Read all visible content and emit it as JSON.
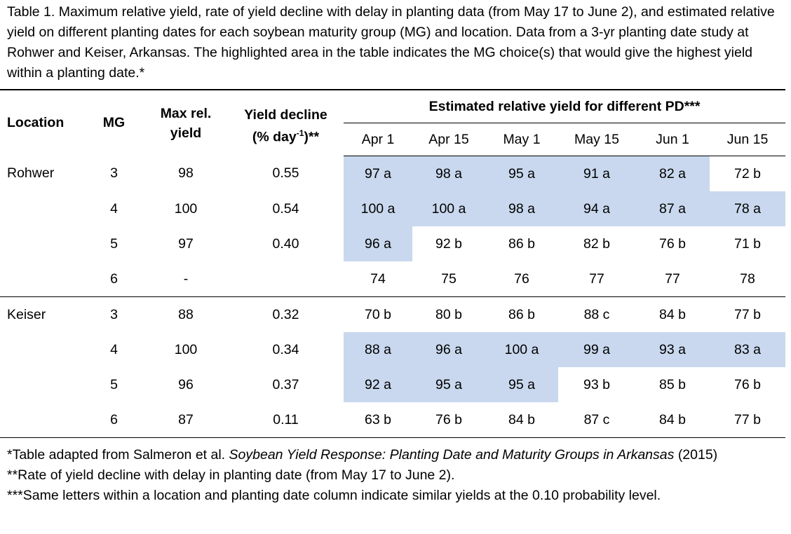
{
  "caption": "Table 1. Maximum relative yield, rate of yield decline with delay in planting data (from May 17 to June 2), and estimated relative yield on different planting dates for each soybean maturity group (MG) and location. Data from a 3-yr planting date study at Rohwer and Keiser, Arkansas. The highlighted area in the table indicates the MG choice(s) that would give the highest yield within a planting date.*",
  "table": {
    "headers": {
      "location": "Location",
      "mg": "MG",
      "max_yield": "Max rel. yield",
      "decline": "Yield decline",
      "decline_unit": "(% day",
      "decline_exponent": "-1",
      "decline_suffix": ")**",
      "group": "Estimated relative yield for different PD***",
      "dates": [
        "Apr 1",
        "Apr 15",
        "May 1",
        "May 15",
        "Jun 1",
        "Jun 15"
      ]
    },
    "groups": [
      {
        "location": "Rohwer",
        "rows": [
          {
            "mg": "3",
            "max_yield": "98",
            "decline": "0.55",
            "yields": [
              "97 a",
              "98 a",
              "95 a",
              "91 a",
              "82 a",
              "72 b"
            ]
          },
          {
            "mg": "4",
            "max_yield": "100",
            "decline": "0.54",
            "yields": [
              "100 a",
              "100 a",
              "98 a",
              "94 a",
              "87 a",
              "78 a"
            ]
          },
          {
            "mg": "5",
            "max_yield": "97",
            "decline": "0.40",
            "yields": [
              "96 a",
              "92 b",
              "86 b",
              "82 b",
              "76 b",
              "71 b"
            ]
          },
          {
            "mg": "6",
            "max_yield": "-",
            "yields": [
              "74",
              "75",
              "76",
              "77",
              "77",
              "78"
            ]
          }
        ]
      },
      {
        "location": "Keiser",
        "rows": [
          {
            "mg": "3",
            "max_yield": "88",
            "decline": "0.32",
            "yields": [
              "70 b",
              "80 b",
              "86 b",
              "88 c",
              "84 b",
              "77 b"
            ]
          },
          {
            "mg": "4",
            "max_yield": "100",
            "decline": "0.34",
            "yields": [
              "88 a",
              "96 a",
              "100 a",
              "99 a",
              "93 a",
              "83 a"
            ]
          },
          {
            "mg": "5",
            "max_yield": "96",
            "decline": "0.37",
            "yields": [
              "92 a",
              "95 a",
              "95 a",
              "93 b",
              "85 b",
              "76 b"
            ]
          },
          {
            "mg": "6",
            "max_yield": "87",
            "decline": "0.11",
            "yields": [
              "63 b",
              "76 b",
              "84 b",
              "87 c",
              "84 b",
              "77 b"
            ]
          }
        ]
      }
    ]
  },
  "footnotes": {
    "source": {
      "text": "*Table adapted from Salmeron et al.",
      "title": "Soybean Yield Response: Planting Date and Maturity Groups in Arkansas",
      "year": "(2015)"
    },
    "rate": "**Rate of yield decline with delay in planting date (from May 17 to June 2).",
    "letters": "***Same letters within a location and planting date column indicate similar yields at the 0.10 probability level."
  }
}
